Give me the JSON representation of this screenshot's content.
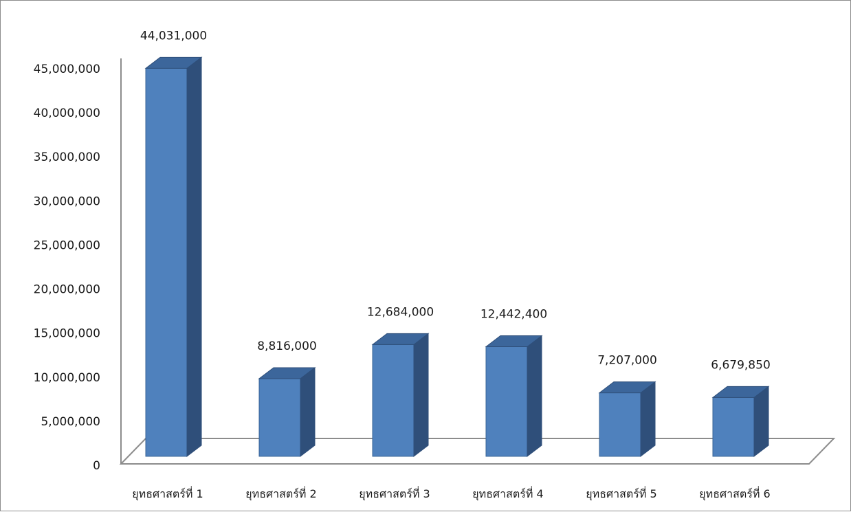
{
  "chart_data": {
    "type": "bar",
    "style": "3d-column",
    "title": "",
    "xlabel": "",
    "ylabel": "",
    "categories": [
      "ยุทธศาสตร์ที่ 1",
      "ยุทธศาสตร์ที่ 2",
      "ยุทธศาสตร์ที่ 3",
      "ยุทธศาสตร์ที่ 4",
      "ยุทธศาสตร์ที่ 5",
      "ยุทธศาสตร์ที่ 6"
    ],
    "values": [
      44031000,
      8816000,
      12684000,
      12442400,
      7207000,
      6679850
    ],
    "value_labels": [
      "44,031,000",
      "8,816,000",
      "12,684,000",
      "12,442,400",
      "7,207,000",
      "6,679,850"
    ],
    "ylim": [
      0,
      45000000
    ],
    "yticks": [
      0,
      5000000,
      10000000,
      15000000,
      20000000,
      25000000,
      30000000,
      35000000,
      40000000,
      45000000
    ],
    "ytick_labels": [
      "0",
      "5,000,000",
      "10,000,000",
      "15,000,000",
      "20,000,000",
      "25,000,000",
      "30,000,000",
      "35,000,000",
      "40,000,000",
      "45,000,000"
    ],
    "grid": false,
    "legend": "none",
    "colors": {
      "bar_front": "#4f81bd",
      "bar_side": "#2f4f7a",
      "bar_top": "#3c669b",
      "bar_edge": "#3a6496",
      "axis": "#8c8c8c"
    }
  }
}
